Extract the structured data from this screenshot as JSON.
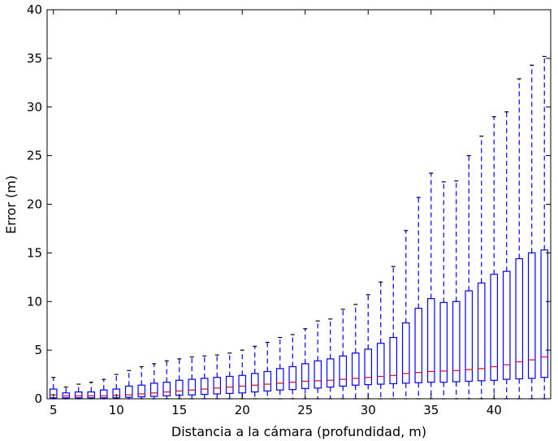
{
  "chart_data": {
    "type": "boxplot",
    "xlabel": "Distancia a la cámara (profundidad, m)",
    "ylabel": "Error (m)",
    "xlim": [
      4.5,
      44.5
    ],
    "ylim": [
      0,
      40
    ],
    "xticks": [
      5,
      10,
      15,
      20,
      25,
      30,
      35,
      40
    ],
    "yticks": [
      0,
      5,
      10,
      15,
      20,
      25,
      30,
      35,
      40
    ],
    "grid": false,
    "colors": {
      "box": "#0000ff",
      "median": "#ff0000",
      "cap": "#000000"
    },
    "boxes": [
      {
        "x": 5,
        "min": 0,
        "q1": 0.1,
        "median": 0.4,
        "q3": 1.0,
        "max": 2.2
      },
      {
        "x": 6,
        "min": 0,
        "q1": 0.1,
        "median": 0.3,
        "q3": 0.6,
        "max": 1.2
      },
      {
        "x": 7,
        "min": 0,
        "q1": 0.1,
        "median": 0.3,
        "q3": 0.7,
        "max": 1.5
      },
      {
        "x": 8,
        "min": 0,
        "q1": 0.1,
        "median": 0.3,
        "q3": 0.7,
        "max": 1.7
      },
      {
        "x": 9,
        "min": 0,
        "q1": 0.1,
        "median": 0.3,
        "q3": 0.9,
        "max": 2.0
      },
      {
        "x": 10,
        "min": 0,
        "q1": 0.1,
        "median": 0.35,
        "q3": 1.0,
        "max": 2.5
      },
      {
        "x": 11,
        "min": 0,
        "q1": 0.15,
        "median": 0.4,
        "q3": 1.3,
        "max": 2.9
      },
      {
        "x": 12,
        "min": 0,
        "q1": 0.2,
        "median": 0.5,
        "q3": 1.4,
        "max": 3.3
      },
      {
        "x": 13,
        "min": 0,
        "q1": 0.25,
        "median": 0.6,
        "q3": 1.6,
        "max": 3.6
      },
      {
        "x": 14,
        "min": 0,
        "q1": 0.3,
        "median": 0.7,
        "q3": 1.7,
        "max": 3.9
      },
      {
        "x": 15,
        "min": 0,
        "q1": 0.35,
        "median": 0.8,
        "q3": 1.9,
        "max": 4.1
      },
      {
        "x": 16,
        "min": 0,
        "q1": 0.4,
        "median": 0.9,
        "q3": 2.0,
        "max": 4.3
      },
      {
        "x": 17,
        "min": 0,
        "q1": 0.45,
        "median": 1.0,
        "q3": 2.1,
        "max": 4.4
      },
      {
        "x": 18,
        "min": 0,
        "q1": 0.5,
        "median": 1.1,
        "q3": 2.2,
        "max": 4.5
      },
      {
        "x": 19,
        "min": 0,
        "q1": 0.55,
        "median": 1.2,
        "q3": 2.3,
        "max": 4.7
      },
      {
        "x": 20,
        "min": 0,
        "q1": 0.6,
        "median": 1.3,
        "q3": 2.4,
        "max": 5.0
      },
      {
        "x": 21,
        "min": 0,
        "q1": 0.7,
        "median": 1.4,
        "q3": 2.6,
        "max": 5.4
      },
      {
        "x": 22,
        "min": 0,
        "q1": 0.8,
        "median": 1.5,
        "q3": 2.8,
        "max": 5.8
      },
      {
        "x": 23,
        "min": 0,
        "q1": 0.9,
        "median": 1.6,
        "q3": 3.1,
        "max": 6.3
      },
      {
        "x": 24,
        "min": 0,
        "q1": 0.95,
        "median": 1.7,
        "q3": 3.3,
        "max": 6.6
      },
      {
        "x": 25,
        "min": 0,
        "q1": 1.05,
        "median": 1.8,
        "q3": 3.6,
        "max": 7.2
      },
      {
        "x": 26,
        "min": 0,
        "q1": 1.1,
        "median": 1.85,
        "q3": 3.9,
        "max": 8.0
      },
      {
        "x": 27,
        "min": 0,
        "q1": 1.2,
        "median": 1.9,
        "q3": 4.1,
        "max": 8.2
      },
      {
        "x": 28,
        "min": 0,
        "q1": 1.3,
        "median": 2.0,
        "q3": 4.4,
        "max": 9.2
      },
      {
        "x": 29,
        "min": 0,
        "q1": 1.4,
        "median": 2.1,
        "q3": 4.7,
        "max": 9.7
      },
      {
        "x": 30,
        "min": 0,
        "q1": 1.45,
        "median": 2.2,
        "q3": 5.1,
        "max": 10.7
      },
      {
        "x": 31,
        "min": 0,
        "q1": 1.5,
        "median": 2.3,
        "q3": 5.7,
        "max": 12.0
      },
      {
        "x": 32,
        "min": 0,
        "q1": 1.55,
        "median": 2.4,
        "q3": 6.3,
        "max": 13.6
      },
      {
        "x": 33,
        "min": 0,
        "q1": 1.6,
        "median": 2.6,
        "q3": 7.8,
        "max": 17.3
      },
      {
        "x": 34,
        "min": 0,
        "q1": 1.65,
        "median": 2.7,
        "q3": 9.3,
        "max": 20.7
      },
      {
        "x": 35,
        "min": 0,
        "q1": 1.7,
        "median": 2.8,
        "q3": 10.3,
        "max": 23.2
      },
      {
        "x": 36,
        "min": 0,
        "q1": 1.7,
        "median": 2.85,
        "q3": 9.9,
        "max": 22.3
      },
      {
        "x": 37,
        "min": 0,
        "q1": 1.75,
        "median": 2.9,
        "q3": 10.0,
        "max": 22.4
      },
      {
        "x": 38,
        "min": 0,
        "q1": 1.8,
        "median": 3.0,
        "q3": 11.1,
        "max": 25.0
      },
      {
        "x": 39,
        "min": 0,
        "q1": 1.85,
        "median": 3.1,
        "q3": 11.9,
        "max": 27.0
      },
      {
        "x": 40,
        "min": 0,
        "q1": 1.9,
        "median": 3.3,
        "q3": 12.8,
        "max": 29.0
      },
      {
        "x": 41,
        "min": 0,
        "q1": 2.0,
        "median": 3.5,
        "q3": 13.1,
        "max": 29.5
      },
      {
        "x": 42,
        "min": 0,
        "q1": 2.05,
        "median": 3.8,
        "q3": 14.4,
        "max": 32.9
      },
      {
        "x": 43,
        "min": 0,
        "q1": 2.1,
        "median": 4.0,
        "q3": 15.0,
        "max": 34.3
      },
      {
        "x": 44,
        "min": 0,
        "q1": 2.2,
        "median": 4.3,
        "q3": 15.3,
        "max": 35.2
      }
    ]
  }
}
